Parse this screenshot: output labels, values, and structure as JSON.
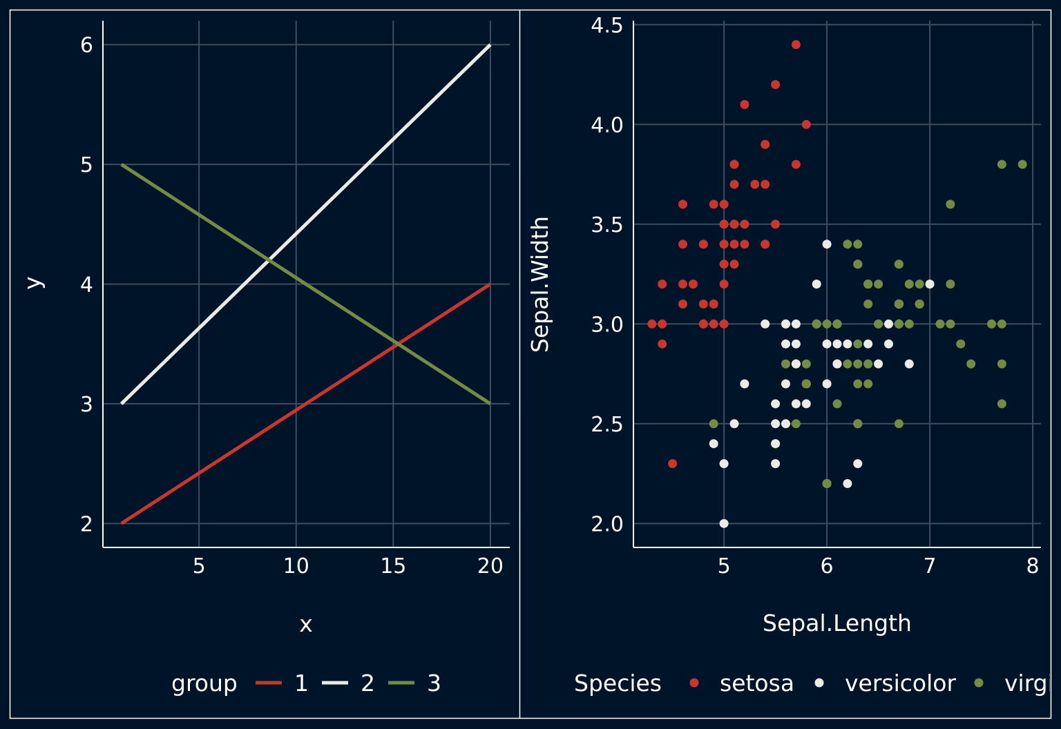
{
  "colors": {
    "background": "#001429",
    "grid": "#3f4d60",
    "axis": "#ffffff",
    "text": "#ffffff",
    "red": "#c8372d",
    "white": "#ebebe5",
    "olive": "#728c44"
  },
  "chart_data": [
    {
      "type": "line",
      "xlabel": "x",
      "ylabel": "y",
      "xlim": [
        0.05,
        21.0
      ],
      "ylim": [
        1.8,
        6.2
      ],
      "x_ticks": [
        5,
        10,
        15,
        20
      ],
      "y_ticks": [
        2,
        3,
        4,
        5,
        6
      ],
      "x_tick_labels": [
        "5",
        "10",
        "15",
        "20"
      ],
      "y_tick_labels": [
        "2",
        "3",
        "4",
        "5",
        "6"
      ],
      "grid": true,
      "legend": {
        "title": "group",
        "position": "bottom",
        "labels": [
          "1",
          "2",
          "3"
        ]
      },
      "series": [
        {
          "name": "1",
          "color": "red",
          "x": [
            1,
            20
          ],
          "y": [
            2,
            4
          ]
        },
        {
          "name": "2",
          "color": "white",
          "x": [
            1,
            20
          ],
          "y": [
            3,
            6
          ]
        },
        {
          "name": "3",
          "color": "olive",
          "x": [
            1,
            20
          ],
          "y": [
            5,
            3
          ]
        }
      ]
    },
    {
      "type": "scatter",
      "xlabel": "Sepal.Length",
      "ylabel": "Sepal.Width",
      "xlim": [
        4.12,
        8.08
      ],
      "ylim": [
        1.88,
        4.52
      ],
      "x_ticks": [
        5,
        6,
        7,
        8
      ],
      "y_ticks": [
        2.0,
        2.5,
        3.0,
        3.5,
        4.0,
        4.5
      ],
      "x_tick_labels": [
        "5",
        "6",
        "7",
        "8"
      ],
      "y_tick_labels": [
        "2.0",
        "2.5",
        "3.0",
        "3.5",
        "4.0",
        "4.5"
      ],
      "grid": true,
      "legend": {
        "title": "Species",
        "position": "bottom",
        "labels": [
          "setosa",
          "versicolor",
          "virginica"
        ]
      },
      "series": [
        {
          "name": "setosa",
          "color": "red",
          "points": [
            [
              5.1,
              3.5
            ],
            [
              4.9,
              3.0
            ],
            [
              4.7,
              3.2
            ],
            [
              4.6,
              3.1
            ],
            [
              5.0,
              3.6
            ],
            [
              5.4,
              3.9
            ],
            [
              4.6,
              3.4
            ],
            [
              5.0,
              3.4
            ],
            [
              4.4,
              2.9
            ],
            [
              4.9,
              3.1
            ],
            [
              5.4,
              3.7
            ],
            [
              4.8,
              3.4
            ],
            [
              4.8,
              3.0
            ],
            [
              4.3,
              3.0
            ],
            [
              5.8,
              4.0
            ],
            [
              5.7,
              4.4
            ],
            [
              5.4,
              3.9
            ],
            [
              5.1,
              3.5
            ],
            [
              5.7,
              3.8
            ],
            [
              5.1,
              3.8
            ],
            [
              5.4,
              3.4
            ],
            [
              5.1,
              3.7
            ],
            [
              4.6,
              3.6
            ],
            [
              5.1,
              3.3
            ],
            [
              4.8,
              3.4
            ],
            [
              5.0,
              3.0
            ],
            [
              5.0,
              3.4
            ],
            [
              5.2,
              3.5
            ],
            [
              5.2,
              3.4
            ],
            [
              4.7,
              3.2
            ],
            [
              4.8,
              3.1
            ],
            [
              5.4,
              3.4
            ],
            [
              5.2,
              4.1
            ],
            [
              5.5,
              4.2
            ],
            [
              4.9,
              3.1
            ],
            [
              5.0,
              3.2
            ],
            [
              5.5,
              3.5
            ],
            [
              4.9,
              3.6
            ],
            [
              4.4,
              3.0
            ],
            [
              5.1,
              3.4
            ],
            [
              5.0,
              3.5
            ],
            [
              4.5,
              2.3
            ],
            [
              4.4,
              3.2
            ],
            [
              5.0,
              3.5
            ],
            [
              5.1,
              3.8
            ],
            [
              4.8,
              3.0
            ],
            [
              5.1,
              3.8
            ],
            [
              4.6,
              3.2
            ],
            [
              5.3,
              3.7
            ],
            [
              5.0,
              3.3
            ]
          ]
        },
        {
          "name": "versicolor",
          "color": "white",
          "points": [
            [
              7.0,
              3.2
            ],
            [
              6.4,
              3.2
            ],
            [
              6.9,
              3.1
            ],
            [
              5.5,
              2.3
            ],
            [
              6.5,
              2.8
            ],
            [
              5.7,
              2.8
            ],
            [
              6.3,
              3.3
            ],
            [
              4.9,
              2.4
            ],
            [
              6.6,
              2.9
            ],
            [
              5.2,
              2.7
            ],
            [
              5.0,
              2.0
            ],
            [
              5.9,
              3.0
            ],
            [
              6.0,
              2.2
            ],
            [
              6.1,
              2.9
            ],
            [
              5.6,
              2.9
            ],
            [
              6.7,
              3.1
            ],
            [
              5.6,
              3.0
            ],
            [
              5.8,
              2.7
            ],
            [
              6.2,
              2.2
            ],
            [
              5.6,
              2.5
            ],
            [
              5.9,
              3.2
            ],
            [
              6.1,
              2.8
            ],
            [
              6.3,
              2.5
            ],
            [
              6.1,
              2.8
            ],
            [
              6.4,
              2.9
            ],
            [
              6.6,
              3.0
            ],
            [
              6.8,
              2.8
            ],
            [
              6.7,
              3.0
            ],
            [
              6.0,
              2.9
            ],
            [
              5.7,
              2.6
            ],
            [
              5.5,
              2.4
            ],
            [
              5.5,
              2.4
            ],
            [
              5.8,
              2.7
            ],
            [
              6.0,
              2.7
            ],
            [
              5.4,
              3.0
            ],
            [
              6.0,
              3.4
            ],
            [
              6.7,
              3.1
            ],
            [
              6.3,
              2.3
            ],
            [
              5.6,
              3.0
            ],
            [
              5.5,
              2.5
            ],
            [
              5.5,
              2.6
            ],
            [
              6.1,
              3.0
            ],
            [
              5.8,
              2.6
            ],
            [
              5.0,
              2.3
            ],
            [
              5.6,
              2.7
            ],
            [
              5.7,
              3.0
            ],
            [
              5.7,
              2.9
            ],
            [
              6.2,
              2.9
            ],
            [
              5.1,
              2.5
            ],
            [
              5.7,
              2.8
            ]
          ]
        },
        {
          "name": "virginica",
          "color": "olive",
          "points": [
            [
              6.3,
              3.3
            ],
            [
              5.8,
              2.7
            ],
            [
              7.1,
              3.0
            ],
            [
              6.3,
              2.9
            ],
            [
              6.5,
              3.0
            ],
            [
              7.6,
              3.0
            ],
            [
              4.9,
              2.5
            ],
            [
              7.3,
              2.9
            ],
            [
              6.7,
              2.5
            ],
            [
              7.2,
              3.6
            ],
            [
              6.5,
              3.2
            ],
            [
              6.4,
              2.7
            ],
            [
              6.8,
              3.0
            ],
            [
              5.7,
              2.5
            ],
            [
              5.8,
              2.8
            ],
            [
              6.4,
              3.2
            ],
            [
              6.5,
              3.0
            ],
            [
              7.7,
              3.8
            ],
            [
              7.7,
              2.6
            ],
            [
              6.0,
              2.2
            ],
            [
              6.9,
              3.2
            ],
            [
              5.6,
              2.8
            ],
            [
              7.7,
              2.8
            ],
            [
              6.3,
              2.7
            ],
            [
              6.7,
              3.3
            ],
            [
              7.2,
              3.2
            ],
            [
              6.2,
              2.8
            ],
            [
              6.1,
              3.0
            ],
            [
              6.4,
              2.8
            ],
            [
              7.2,
              3.0
            ],
            [
              7.4,
              2.8
            ],
            [
              7.9,
              3.8
            ],
            [
              6.4,
              2.8
            ],
            [
              6.3,
              2.8
            ],
            [
              6.1,
              2.6
            ],
            [
              7.7,
              3.0
            ],
            [
              6.3,
              3.4
            ],
            [
              6.4,
              3.1
            ],
            [
              6.0,
              3.0
            ],
            [
              6.9,
              3.1
            ],
            [
              6.7,
              3.1
            ],
            [
              6.9,
              3.1
            ],
            [
              5.8,
              2.7
            ],
            [
              6.8,
              3.2
            ],
            [
              6.7,
              3.3
            ],
            [
              6.7,
              3.0
            ],
            [
              6.3,
              2.5
            ],
            [
              6.5,
              3.0
            ],
            [
              6.2,
              3.4
            ],
            [
              5.9,
              3.0
            ]
          ]
        }
      ]
    }
  ]
}
